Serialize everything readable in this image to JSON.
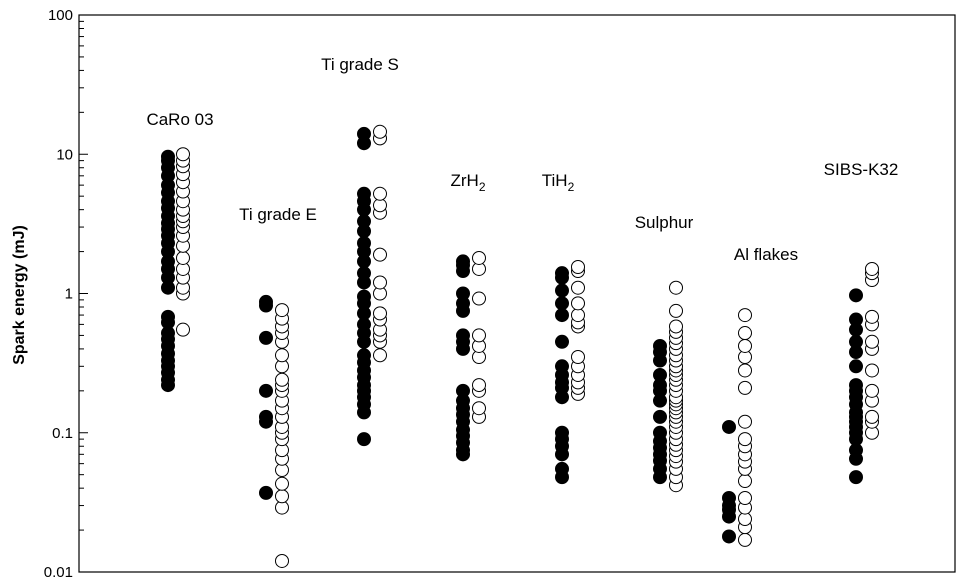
{
  "chart_data": {
    "type": "scatter",
    "ylabel": "Spark energy (mJ)",
    "yscale": "log",
    "ylim": [
      0.01,
      100
    ],
    "ytick_labels": [
      "0.01",
      "0.1",
      "1",
      "10",
      "100"
    ],
    "grid": false,
    "legend": "none",
    "colors": {
      "filled": "#000000",
      "open": "#ffffff",
      "stroke": "#000000"
    },
    "groups": [
      {
        "label": "CaRo 03",
        "label_main": "CaRo 03",
        "label_sub": "",
        "filled": [
          0.22,
          0.24,
          0.27,
          0.3,
          0.33,
          0.37,
          0.42,
          0.47,
          0.52,
          0.62,
          0.68,
          1.1,
          1.3,
          1.5,
          1.7,
          2.0,
          2.3,
          2.6,
          2.9,
          3.2,
          3.6,
          4.1,
          4.6,
          5.3,
          6.0,
          7.0,
          8.0,
          9.0,
          9.6
        ],
        "open": [
          0.55,
          1.0,
          1.1,
          1.3,
          1.5,
          1.8,
          2.2,
          2.6,
          3.0,
          3.3,
          3.6,
          4.0,
          4.6,
          5.4,
          6.3,
          7.2,
          8.2,
          9.0,
          10.0
        ]
      },
      {
        "label": "Ti grade E",
        "label_main": "Ti grade E",
        "label_sub": "",
        "filled": [
          0.037,
          0.12,
          0.13,
          0.2,
          0.48,
          0.82,
          0.87
        ],
        "open": [
          0.012,
          0.029,
          0.035,
          0.043,
          0.054,
          0.065,
          0.075,
          0.09,
          0.1,
          0.11,
          0.13,
          0.15,
          0.17,
          0.2,
          0.22,
          0.24,
          0.3,
          0.36,
          0.45,
          0.52,
          0.58,
          0.66,
          0.76
        ]
      },
      {
        "label": "Ti grade S",
        "label_main": "Ti grade S",
        "label_sub": "",
        "filled": [
          0.09,
          0.14,
          0.16,
          0.18,
          0.2,
          0.22,
          0.25,
          0.28,
          0.32,
          0.36,
          0.45,
          0.52,
          0.6,
          0.72,
          0.85,
          0.95,
          1.2,
          1.4,
          1.7,
          2.0,
          2.3,
          2.8,
          3.3,
          4.0,
          4.6,
          5.2,
          12.0,
          14.0
        ],
        "open": [
          0.36,
          0.45,
          0.5,
          0.55,
          0.65,
          0.72,
          1.0,
          1.2,
          1.9,
          3.8,
          4.3,
          5.2,
          13.0,
          14.5
        ]
      },
      {
        "label": "ZrH2",
        "label_main": "ZrH",
        "label_sub": "2",
        "filled": [
          0.07,
          0.075,
          0.085,
          0.095,
          0.105,
          0.12,
          0.135,
          0.15,
          0.17,
          0.2,
          0.4,
          0.45,
          0.5,
          0.75,
          0.85,
          1.0,
          1.45,
          1.6,
          1.7
        ],
        "open": [
          0.13,
          0.15,
          0.2,
          0.22,
          0.35,
          0.42,
          0.5,
          0.92,
          1.5,
          1.8
        ]
      },
      {
        "label": "TiH2",
        "label_main": "TiH",
        "label_sub": "2",
        "filled": [
          0.048,
          0.055,
          0.07,
          0.08,
          0.09,
          0.1,
          0.18,
          0.21,
          0.23,
          0.26,
          0.3,
          0.45,
          0.7,
          0.85,
          1.05,
          1.3,
          1.4
        ],
        "open": [
          0.19,
          0.21,
          0.23,
          0.26,
          0.3,
          0.35,
          0.58,
          0.62,
          0.7,
          0.85,
          1.1,
          1.45,
          1.55
        ]
      },
      {
        "label": "Sulphur",
        "label_main": "Sulphur",
        "label_sub": "",
        "filled": [
          0.048,
          0.055,
          0.063,
          0.07,
          0.078,
          0.087,
          0.1,
          0.13,
          0.17,
          0.2,
          0.22,
          0.26,
          0.33,
          0.38,
          0.42
        ],
        "open": [
          0.042,
          0.048,
          0.055,
          0.062,
          0.068,
          0.075,
          0.082,
          0.09,
          0.1,
          0.11,
          0.12,
          0.13,
          0.14,
          0.15,
          0.16,
          0.17,
          0.18,
          0.2,
          0.22,
          0.24,
          0.26,
          0.28,
          0.3,
          0.33,
          0.36,
          0.4,
          0.44,
          0.48,
          0.53,
          0.58,
          0.75,
          1.1
        ]
      },
      {
        "label": "Al flakes",
        "label_main": "Al flakes",
        "label_sub": "",
        "filled": [
          0.018,
          0.025,
          0.028,
          0.03,
          0.034,
          0.11
        ],
        "open": [
          0.017,
          0.021,
          0.024,
          0.029,
          0.034,
          0.045,
          0.055,
          0.062,
          0.07,
          0.08,
          0.09,
          0.12,
          0.21,
          0.28,
          0.35,
          0.42,
          0.52,
          0.7
        ]
      },
      {
        "label": "SIBS-K32",
        "label_main": "SIBS-K32",
        "label_sub": "",
        "filled": [
          0.048,
          0.065,
          0.075,
          0.09,
          0.1,
          0.11,
          0.12,
          0.13,
          0.14,
          0.16,
          0.18,
          0.2,
          0.22,
          0.3,
          0.38,
          0.45,
          0.55,
          0.65,
          0.97
        ],
        "open": [
          0.1,
          0.12,
          0.13,
          0.17,
          0.2,
          0.28,
          0.4,
          0.45,
          0.6,
          0.68,
          1.25,
          1.4,
          1.5
        ]
      }
    ]
  }
}
